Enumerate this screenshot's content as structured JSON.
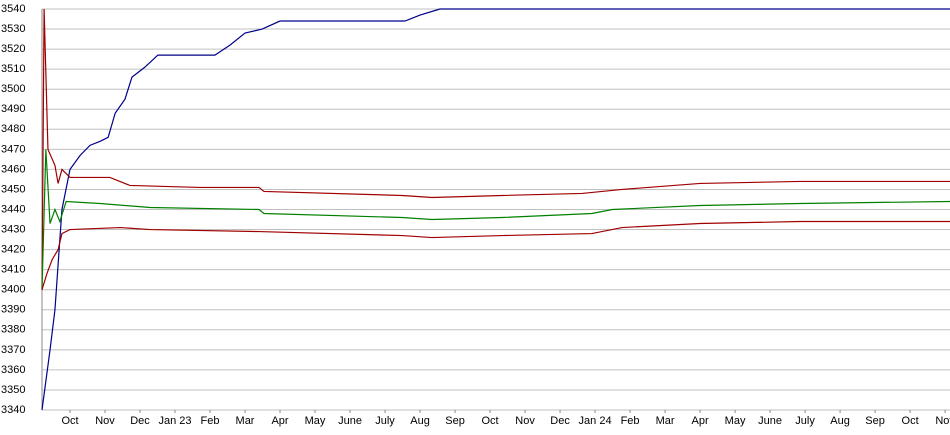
{
  "chart_data": {
    "type": "line",
    "ylim": [
      3340,
      3540
    ],
    "yticks": [
      3340,
      3350,
      3360,
      3370,
      3380,
      3390,
      3400,
      3410,
      3420,
      3430,
      3440,
      3450,
      3460,
      3470,
      3480,
      3490,
      3500,
      3510,
      3520,
      3530,
      3540
    ],
    "xlim": [
      0.2,
      26.14
    ],
    "xticks": [
      {
        "value": 1,
        "label": "Oct"
      },
      {
        "value": 2,
        "label": "Nov"
      },
      {
        "value": 3,
        "label": "Dec"
      },
      {
        "value": 4,
        "label": "Jan 23"
      },
      {
        "value": 5,
        "label": "Feb"
      },
      {
        "value": 6,
        "label": "Mar"
      },
      {
        "value": 7,
        "label": "Apr"
      },
      {
        "value": 8,
        "label": "May"
      },
      {
        "value": 9,
        "label": "June"
      },
      {
        "value": 10,
        "label": "July"
      },
      {
        "value": 11,
        "label": "Aug"
      },
      {
        "value": 12,
        "label": "Sep"
      },
      {
        "value": 13,
        "label": "Oct"
      },
      {
        "value": 14,
        "label": "Nov"
      },
      {
        "value": 15,
        "label": "Dec"
      },
      {
        "value": 16,
        "label": "Jan 24"
      },
      {
        "value": 17,
        "label": "Feb"
      },
      {
        "value": 18,
        "label": "Mar"
      },
      {
        "value": 19,
        "label": "Apr"
      },
      {
        "value": 20,
        "label": "May"
      },
      {
        "value": 21,
        "label": "June"
      },
      {
        "value": 22,
        "label": "July"
      },
      {
        "value": 23,
        "label": "Aug"
      },
      {
        "value": 24,
        "label": "Sep"
      },
      {
        "value": 25,
        "label": "Oct"
      },
      {
        "value": 26,
        "label": "Nov"
      }
    ],
    "grid": true,
    "series": [
      {
        "color": "#00008b",
        "x": [
          0.2,
          0.43,
          0.57,
          0.77,
          1.0,
          1.29,
          1.57,
          1.86,
          2.09,
          2.29,
          2.57,
          2.77,
          3.14,
          3.51,
          5.14,
          5.57,
          6.0,
          6.49,
          7.0,
          10.57,
          11.0,
          11.57,
          26.14
        ],
        "values": [
          3340,
          3370,
          3390,
          3440,
          3460,
          3467,
          3472,
          3474,
          3476,
          3488,
          3495,
          3506,
          3511,
          3517,
          3517,
          3522,
          3528,
          3530,
          3534,
          3534,
          3537,
          3540,
          3540
        ]
      },
      {
        "color": "#a00000",
        "x": [
          0.2,
          0.26,
          0.37,
          0.57,
          0.66,
          0.77,
          1.0,
          1.86,
          2.14,
          2.71,
          4.71,
          6.4,
          6.54,
          10.49,
          11.34,
          13.34,
          15.63,
          16.77,
          19.0,
          21.86,
          26.14
        ],
        "values": [
          3400,
          3540,
          3470,
          3462,
          3453,
          3460,
          3456,
          3456,
          3456,
          3452,
          3451,
          3451,
          3449,
          3447,
          3446,
          3447,
          3448,
          3450,
          3453,
          3454,
          3454
        ]
      },
      {
        "color": "#008000",
        "x": [
          0.2,
          0.31,
          0.43,
          0.57,
          0.71,
          0.89,
          1.86,
          3.29,
          6.4,
          6.54,
          10.49,
          11.34,
          13.34,
          15.91,
          16.49,
          19.0,
          21.86,
          26.14
        ],
        "values": [
          3400,
          3470,
          3433,
          3440,
          3434,
          3444,
          3443,
          3441,
          3440,
          3438,
          3436,
          3435,
          3436,
          3438,
          3440,
          3442,
          3443,
          3444
        ]
      },
      {
        "color": "#a00000",
        "x": [
          0.2,
          0.34,
          0.49,
          0.66,
          0.77,
          1.0,
          2.43,
          3.29,
          6.4,
          10.49,
          11.34,
          13.34,
          15.91,
          16.77,
          19.0,
          21.86,
          26.14
        ],
        "values": [
          3400,
          3408,
          3415,
          3420,
          3428,
          3430,
          3431,
          3430,
          3429,
          3427,
          3426,
          3427,
          3428,
          3431,
          3433,
          3434,
          3434
        ]
      }
    ]
  }
}
